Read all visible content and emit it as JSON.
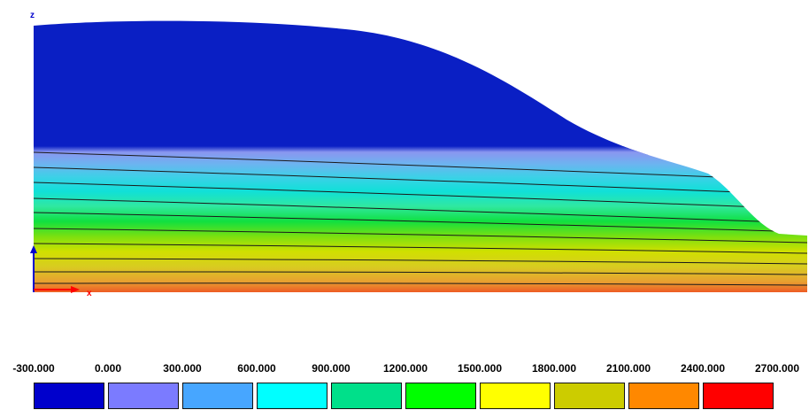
{
  "axes": {
    "z_label": "z",
    "x_label": "x",
    "z_color": "#0000cc",
    "x_color": "#ff0000"
  },
  "legend": {
    "ticks": [
      "-300.000",
      "0.000",
      "300.000",
      "600.000",
      "900.000",
      "1200.000",
      "1500.000",
      "1800.000",
      "2100.000",
      "2400.000",
      "2700.000"
    ],
    "colors": [
      "#0000cc",
      "#7b7bff",
      "#47a6ff",
      "#00ffff",
      "#00e08a",
      "#00ff00",
      "#ffff00",
      "#cccc00",
      "#ff8800",
      "#ff0000"
    ]
  },
  "contour": {
    "band_colors_top_to_bottom": [
      "#0a1fc4",
      "#8a96f0",
      "#6cb4f0",
      "#3fcfe8",
      "#10e0d8",
      "#30e8a0",
      "#10e040",
      "#7ae010",
      "#d0e000",
      "#d8cc20",
      "#e8a030",
      "#f04020"
    ]
  }
}
